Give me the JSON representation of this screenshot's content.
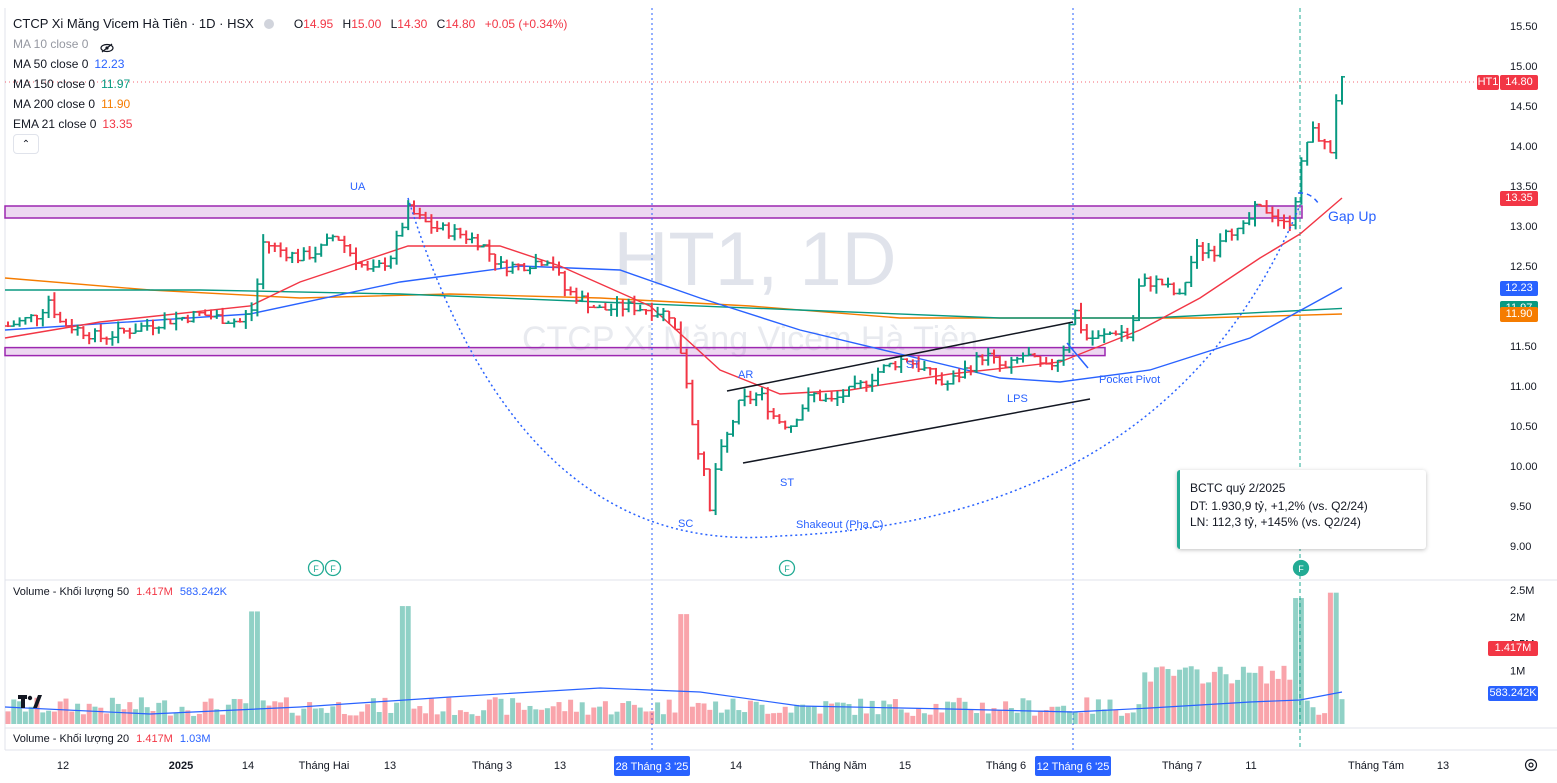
{
  "header": {
    "title": "CTCP Xi Măng Vicem Hà Tiên · 1D · HSX",
    "ohlc": [
      {
        "label": "O",
        "value": "14.95"
      },
      {
        "label": "H",
        "value": "15.00"
      },
      {
        "label": "L",
        "value": "14.30"
      },
      {
        "label": "C",
        "value": "14.80"
      },
      {
        "label": "",
        "value": "+0.05 (+0.34%)"
      }
    ]
  },
  "indicators": [
    {
      "name": "MA 10 close 0",
      "value": "",
      "color": "#9598a1",
      "hidden": true
    },
    {
      "name": "MA 50 close 0",
      "value": "12.23",
      "color": "#2962ff"
    },
    {
      "name": "MA 150 close 0",
      "value": "11.97",
      "color": "#089981"
    },
    {
      "name": "MA 200 close 0",
      "value": "11.90",
      "color": "#f57c00"
    },
    {
      "name": "EMA 21 close 0",
      "value": "13.35",
      "color": "#f23645"
    }
  ],
  "watermark": {
    "symbol": "HT1, 1D",
    "name": "CTCP Xi Măng Vicem Hà Tiên"
  },
  "price_tags": [
    {
      "label": "HT1",
      "value": "14.80",
      "color": "#f23645",
      "price": 14.8
    },
    {
      "label": "",
      "value": "13.35",
      "color": "#f23645",
      "price": 13.35
    },
    {
      "label": "",
      "value": "12.23",
      "color": "#2962ff",
      "price": 12.23
    },
    {
      "label": "",
      "value": "11.97",
      "color": "#089981",
      "price": 11.97
    },
    {
      "label": "",
      "value": "11.90",
      "color": "#f57c00",
      "price": 11.9
    }
  ],
  "annotations": {
    "ua": "UA",
    "sc": "SC",
    "ar": "AR",
    "st1": "ST",
    "st2": "ST",
    "lps": "LPS",
    "shakeout": "Shakeout (Pha C)",
    "pocket_pivot": "Pocket Pivot",
    "gap_up": "Gap Up"
  },
  "callout": {
    "title": "BCTC quý 2/2025",
    "line1": "DT: 1.930,9 tỷ, +1,2% (vs. Q2/24)",
    "line2": "LN: 112,3 tỷ, +145% (vs. Q2/24)"
  },
  "event_markers": {
    "label": "F"
  },
  "volume_pane": {
    "legend1_name": "Volume - Khối lượng 50",
    "legend1_v1": "1.417M",
    "legend1_v2": "583.242K",
    "legend2_name": "Volume - Khối lượng 20",
    "legend2_v1": "1.417M",
    "legend2_v2": "1.03M",
    "tag_volume": "1.417M",
    "tag_ma": "583.242K"
  },
  "x_axis": {
    "labels": [
      "12",
      "2025",
      "14",
      "Tháng Hai",
      "13",
      "Tháng 3",
      "13",
      "14",
      "Tháng Năm",
      "15",
      "Tháng 6",
      "Tháng 7",
      "11",
      "Tháng Tám",
      "13"
    ],
    "highlight_labels": [
      "28 Tháng 3 '25",
      "12 Tháng 6 '25"
    ]
  },
  "chart_data": {
    "type": "candlestick",
    "title": "CTCP Xi Măng Vicem Hà Tiên · 1D · HSX",
    "price_axis_ticks": [
      9.0,
      9.5,
      10.0,
      10.5,
      11.0,
      11.5,
      12.0,
      12.5,
      13.0,
      13.5,
      14.0,
      14.5,
      15.0,
      15.5
    ],
    "ylim": [
      8.8,
      15.6
    ],
    "volume_axis_ticks": [
      "2.5M",
      "2M",
      "1.5M",
      "1M",
      "500K"
    ],
    "volume_ylim": [
      0,
      2.7
    ],
    "last_close": 14.8,
    "resistance_zone": [
      13.1,
      13.25
    ],
    "support_zone": [
      11.38,
      11.48
    ],
    "ma_last": {
      "ma50": 12.23,
      "ma150": 11.97,
      "ma200": 11.9,
      "ema21": 13.35
    },
    "volume_last": 1.417,
    "volume_ma_last": 0.583
  }
}
